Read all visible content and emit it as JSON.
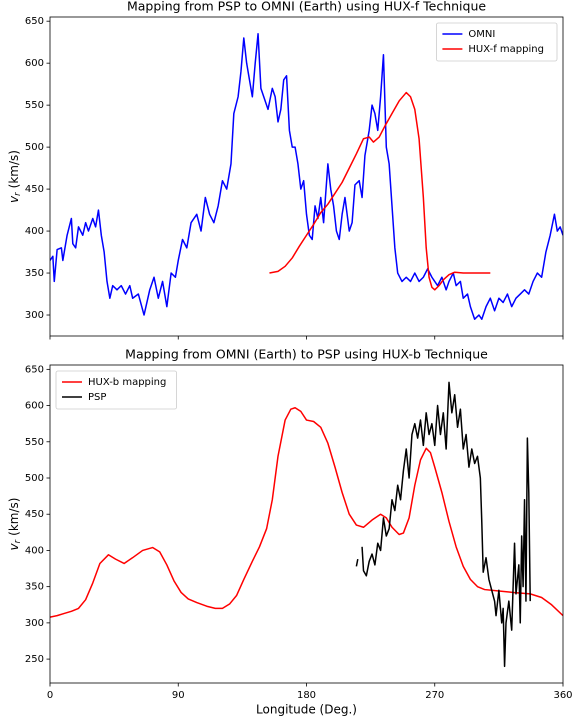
{
  "chart_data": [
    {
      "type": "line",
      "title": "Mapping from PSP to OMNI (Earth) using HUX-f Technique",
      "ylabel": {
        "symbol": "v",
        "subscript": "r",
        "unit": "(km/s)"
      },
      "xlim": [
        0,
        360
      ],
      "xticks": [
        0,
        90,
        180,
        270,
        360
      ],
      "ylim": [
        275,
        655
      ],
      "yticks": [
        300,
        350,
        400,
        450,
        500,
        550,
        600,
        650
      ],
      "legend": "upper right",
      "series": [
        {
          "name": "OMNI",
          "color": "#0000ff",
          "x": [
            0,
            2,
            3,
            5,
            8,
            9,
            12,
            15,
            16,
            18,
            20,
            23,
            25,
            27,
            30,
            32,
            34,
            36,
            38,
            40,
            42,
            44,
            47,
            50,
            53,
            56,
            58,
            62,
            66,
            68,
            70,
            73,
            76,
            79,
            82,
            85,
            88,
            90,
            93,
            96,
            99,
            103,
            106,
            109,
            112,
            115,
            118,
            121,
            124,
            127,
            129,
            132,
            134,
            136,
            138,
            140,
            142,
            144,
            146,
            148,
            150,
            153,
            156,
            158,
            160,
            162,
            164,
            166,
            168,
            170,
            172,
            174,
            176,
            178,
            180,
            182,
            184,
            186,
            188,
            190,
            192,
            195,
            197,
            199,
            201,
            203,
            205,
            207,
            210,
            212,
            214,
            217,
            219,
            221,
            224,
            226,
            228,
            230,
            232,
            234,
            236,
            238,
            240,
            242,
            244,
            247,
            250,
            253,
            256,
            259,
            262,
            265,
            268,
            270,
            272,
            275,
            278,
            280,
            283,
            285,
            288,
            290,
            293,
            295,
            298,
            301,
            303,
            306,
            309,
            312,
            315,
            318,
            321,
            324,
            327,
            330,
            333,
            336,
            339,
            342,
            345,
            348,
            351,
            354,
            356,
            358,
            360
          ],
          "values": [
            365,
            370,
            340,
            378,
            380,
            365,
            395,
            415,
            385,
            380,
            405,
            395,
            410,
            400,
            415,
            405,
            425,
            395,
            375,
            340,
            320,
            335,
            330,
            335,
            325,
            335,
            320,
            325,
            300,
            315,
            330,
            345,
            320,
            340,
            310,
            350,
            345,
            365,
            390,
            380,
            410,
            420,
            400,
            440,
            420,
            410,
            430,
            460,
            450,
            480,
            540,
            560,
            590,
            630,
            600,
            580,
            560,
            600,
            635,
            570,
            560,
            545,
            570,
            560,
            530,
            545,
            580,
            585,
            520,
            500,
            500,
            480,
            450,
            460,
            420,
            395,
            390,
            430,
            415,
            440,
            410,
            480,
            450,
            430,
            400,
            390,
            420,
            440,
            400,
            410,
            455,
            460,
            440,
            490,
            520,
            550,
            540,
            520,
            560,
            610,
            500,
            480,
            430,
            380,
            350,
            340,
            345,
            340,
            350,
            340,
            345,
            355,
            345,
            340,
            335,
            345,
            330,
            340,
            350,
            335,
            340,
            320,
            325,
            310,
            295,
            300,
            295,
            310,
            320,
            305,
            320,
            315,
            325,
            310,
            320,
            325,
            330,
            325,
            340,
            350,
            345,
            375,
            395,
            420,
            400,
            405,
            395
          ]
        },
        {
          "name": "HUX-f mapping",
          "color": "#ff0000",
          "x": [
            154,
            160,
            165,
            170,
            175,
            180,
            185,
            190,
            195,
            200,
            205,
            210,
            215,
            220,
            224,
            227,
            231,
            235,
            240,
            245,
            250,
            253,
            256,
            259,
            262,
            264,
            266,
            268,
            270,
            273,
            276,
            280,
            284,
            290,
            300,
            309
          ],
          "values": [
            350,
            352,
            358,
            368,
            382,
            395,
            408,
            422,
            432,
            445,
            458,
            475,
            492,
            510,
            512,
            506,
            512,
            525,
            540,
            555,
            565,
            560,
            545,
            510,
            440,
            380,
            345,
            333,
            330,
            335,
            342,
            348,
            351,
            350,
            350,
            350
          ]
        }
      ]
    },
    {
      "type": "line",
      "title": "Mapping from OMNI (Earth) to PSP using HUX-b Technique",
      "xlabel": "Longitude (Deg.)",
      "ylabel": {
        "symbol": "v",
        "subscript": "r",
        "unit": "(km/s)"
      },
      "xlim": [
        0,
        360
      ],
      "xticks": [
        0,
        90,
        180,
        270,
        360
      ],
      "ylim": [
        217,
        656
      ],
      "yticks": [
        250,
        300,
        350,
        400,
        450,
        500,
        550,
        600,
        650
      ],
      "legend": "upper left",
      "series": [
        {
          "name": "HUX-b mapping",
          "color": "#ff0000",
          "x": [
            0,
            5,
            10,
            15,
            20,
            25,
            30,
            35,
            41,
            46,
            52,
            58,
            65,
            72,
            77,
            82,
            87,
            92,
            97,
            103,
            110,
            116,
            121,
            126,
            131,
            136,
            142,
            147,
            152,
            156,
            160,
            165,
            169,
            172,
            176,
            180,
            185,
            190,
            195,
            200,
            205,
            210,
            215,
            220,
            226,
            232,
            236,
            240,
            245,
            248,
            252,
            256,
            260,
            264,
            267,
            270,
            275,
            280,
            285,
            290,
            295,
            300,
            305,
            315,
            325,
            337,
            345,
            352,
            360
          ],
          "values": [
            308,
            310,
            313,
            316,
            320,
            332,
            355,
            382,
            394,
            388,
            382,
            390,
            400,
            404,
            398,
            380,
            358,
            342,
            333,
            328,
            323,
            320,
            320,
            326,
            338,
            360,
            385,
            405,
            430,
            470,
            530,
            580,
            595,
            597,
            592,
            580,
            578,
            570,
            548,
            515,
            480,
            450,
            435,
            432,
            442,
            450,
            445,
            432,
            422,
            424,
            445,
            490,
            525,
            541,
            535,
            515,
            480,
            440,
            405,
            378,
            360,
            350,
            346,
            344,
            342,
            340,
            335,
            325,
            310
          ]
        },
        {
          "name": "PSP",
          "color": "#000000",
          "x": [
            215,
            216,
            217,
            219,
            220,
            222,
            224,
            226,
            228,
            230,
            232,
            234,
            236,
            238,
            240,
            242,
            244,
            246,
            248,
            250,
            252,
            254,
            256,
            258,
            260,
            262,
            264,
            266,
            268,
            270,
            272,
            274,
            276,
            278,
            280,
            282,
            284,
            286,
            288,
            290,
            292,
            294,
            296,
            298,
            300,
            302,
            303,
            304,
            306,
            308,
            310,
            312,
            313,
            315,
            317,
            318,
            319,
            320,
            322,
            324,
            326,
            327,
            329,
            330,
            331,
            332,
            333,
            334,
            335,
            336,
            337
          ],
          "values": [
            378,
            388,
            null,
            405,
            372,
            365,
            385,
            395,
            380,
            410,
            400,
            445,
            420,
            430,
            470,
            455,
            490,
            470,
            510,
            540,
            500,
            560,
            575,
            555,
            580,
            545,
            590,
            560,
            575,
            545,
            600,
            560,
            590,
            540,
            632,
            590,
            615,
            570,
            595,
            540,
            560,
            515,
            540,
            520,
            530,
            500,
            440,
            370,
            390,
            360,
            345,
            330,
            310,
            345,
            300,
            320,
            240,
            300,
            330,
            290,
            410,
            340,
            380,
            300,
            420,
            350,
            470,
            330,
            555,
            480,
            330
          ]
        }
      ]
    }
  ]
}
